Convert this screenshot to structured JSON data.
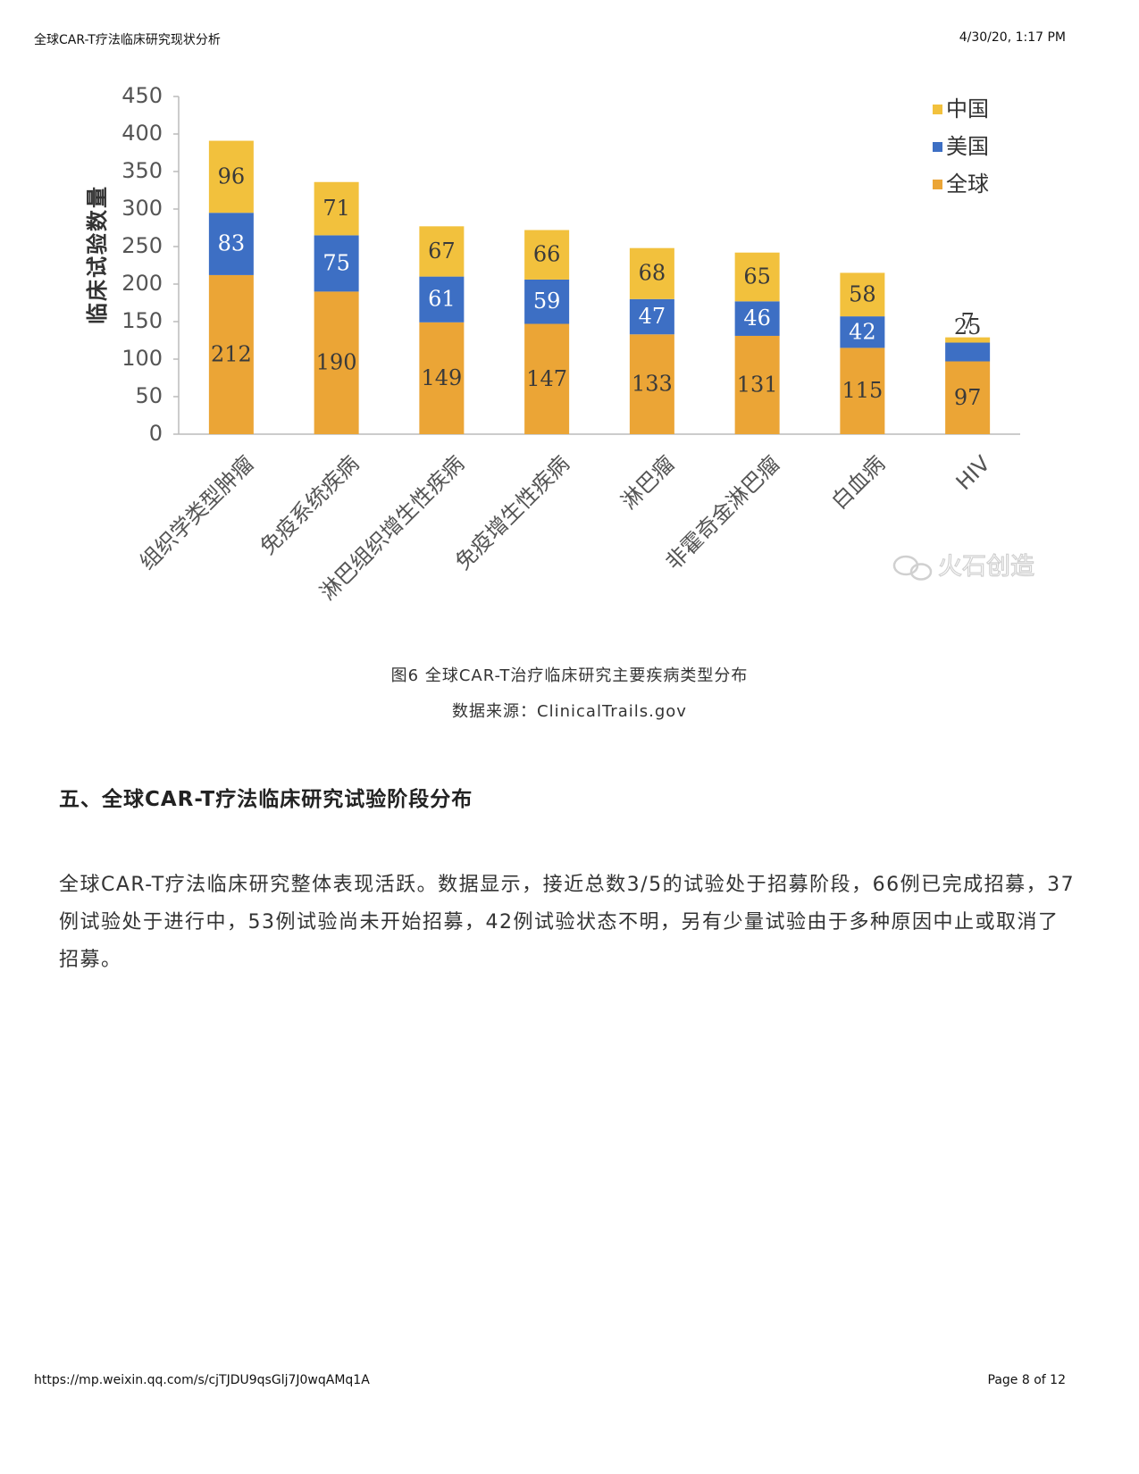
{
  "header": {
    "left": "全球CAR-T疗法临床研究现状分析",
    "right": "4/30/20, 1:17 PM"
  },
  "chart_data": {
    "type": "bar",
    "stacked": true,
    "title": "",
    "xlabel": "",
    "ylabel": "临床试验数量",
    "ylim": [
      0,
      450
    ],
    "yticks": [
      0,
      50,
      100,
      150,
      200,
      250,
      300,
      350,
      400,
      450
    ],
    "categories": [
      "组织学类型肿瘤",
      "免疫系统疾病",
      "淋巴组织增生性疾病",
      "免疫增生性疾病",
      "淋巴瘤",
      "非霍奇金淋巴瘤",
      "白血病",
      "HIV"
    ],
    "series": [
      {
        "name": "全球",
        "color": "#eba536",
        "values": [
          212,
          190,
          149,
          147,
          133,
          131,
          115,
          97
        ]
      },
      {
        "name": "美国",
        "color": "#3d6fc4",
        "values": [
          83,
          75,
          61,
          59,
          47,
          46,
          42,
          25
        ]
      },
      {
        "name": "中国",
        "color": "#f2c13d",
        "values": [
          96,
          71,
          67,
          66,
          68,
          65,
          58,
          7
        ]
      }
    ],
    "legend_order": [
      "中国",
      "美国",
      "全球"
    ],
    "legend_position": "top-right",
    "grid": false
  },
  "watermark": "火石创造",
  "caption": {
    "line1": "图6 全球CAR-T治疗临床研究主要疾病类型分布",
    "line2": "数据来源：ClinicalTrails.gov"
  },
  "section": {
    "title": "五、全球CAR-T疗法临床研究试验阶段分布",
    "paragraph": "全球CAR-T疗法临床研究整体表现活跃。数据显示，接近总数3/5的试验处于招募阶段，66例已完成招募，37例试验处于进行中，53例试验尚未开始招募，42例试验状态不明，另有少量试验由于多种原因中止或取消了招募。"
  },
  "footer": {
    "left": "https://mp.weixin.qq.com/s/cjTJDU9qsGlj7J0wqAMq1A",
    "right": "Page 8 of 12"
  }
}
